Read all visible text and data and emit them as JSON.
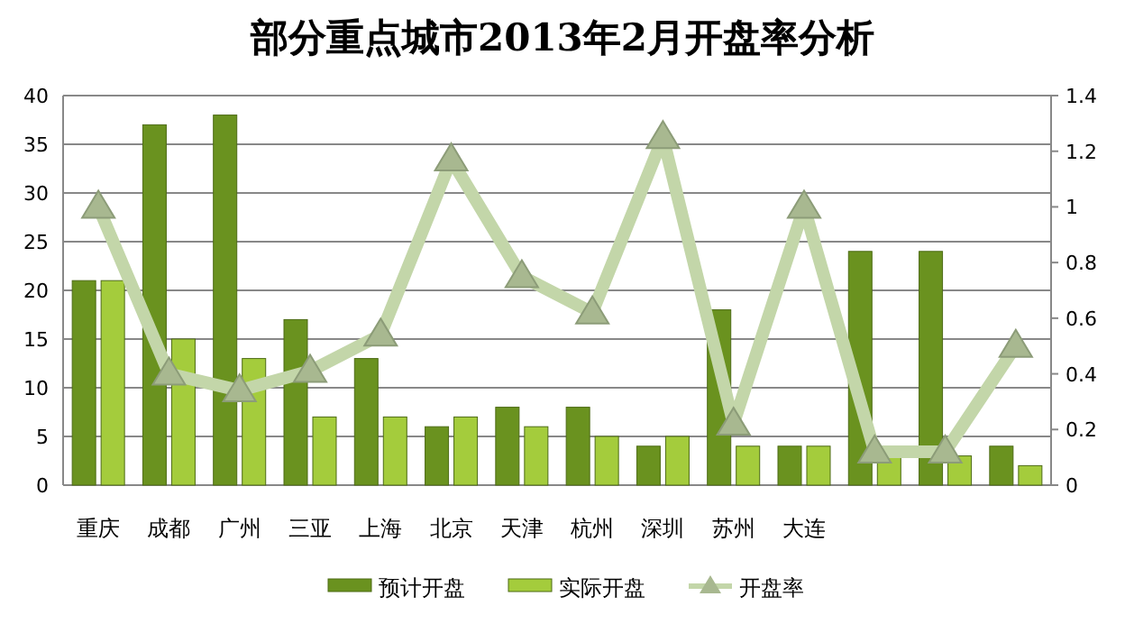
{
  "chart_data": {
    "type": "bar",
    "title": "部分重点城市2013年2月开盘率分析",
    "categories": [
      "重庆",
      "成都",
      "广州",
      "三亚",
      "上海",
      "北京",
      "天津",
      "杭州",
      "深圳",
      "苏州",
      "大连",
      null,
      null,
      null
    ],
    "series": [
      {
        "name": "预计开盘",
        "color": "#6a921f",
        "values": [
          21,
          37,
          38,
          17,
          13,
          6,
          8,
          8,
          4,
          18,
          4,
          24,
          24,
          4
        ]
      },
      {
        "name": "实际开盘",
        "color": "#a4cc3c",
        "values": [
          21,
          15,
          13,
          7,
          7,
          7,
          6,
          5,
          5,
          4,
          4,
          3,
          3,
          2
        ]
      },
      {
        "name": "开盘率",
        "type": "line",
        "axis": "y2",
        "color": "#c3d6a9",
        "marker": "triangle",
        "values": [
          1.0,
          0.4,
          0.34,
          0.41,
          0.54,
          1.17,
          0.75,
          0.62,
          1.25,
          0.22,
          1.0,
          0.12,
          0.12,
          0.5
        ]
      }
    ],
    "ylim": [
      0,
      40
    ],
    "yticks": [
      0,
      5,
      10,
      15,
      20,
      25,
      30,
      35,
      40
    ],
    "y2lim": [
      0,
      1.4
    ],
    "y2ticks": [
      0,
      0.2,
      0.4,
      0.6,
      0.8,
      1,
      1.2,
      1.4
    ],
    "grid": "y",
    "legend": "bottom"
  }
}
